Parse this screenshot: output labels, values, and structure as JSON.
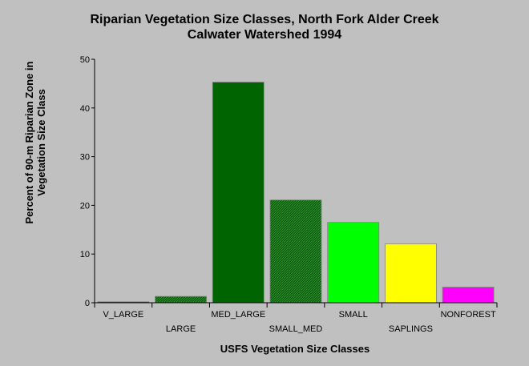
{
  "chart_data": {
    "type": "bar",
    "title": "Riparian Vegetation Size Classes, North Fork Alder Creek",
    "subtitle": "Calwater Watershed 1994",
    "xlabel": "USFS Vegetation Size Classes",
    "ylabel": "Percent of 90-m Riparian Zone in Vegetation Size Class",
    "ylim": [
      0,
      50
    ],
    "yticks": [
      0,
      10,
      20,
      30,
      40,
      50
    ],
    "categories": [
      "V_LARGE",
      "LARGE",
      "MED_LARGE",
      "SMALL_MED",
      "SMALL",
      "SAPLINGS",
      "NONFOREST"
    ],
    "values": [
      0.2,
      1.3,
      45.3,
      21.1,
      16.5,
      12.1,
      3.2
    ],
    "colors": [
      "#800080",
      "#006400",
      "#006400",
      "#006400",
      "#00ff00",
      "#ffff00",
      "#ff00ff"
    ],
    "patterns": [
      "solid",
      "hatched",
      "solid",
      "hatched",
      "solid",
      "solid",
      "solid"
    ],
    "grid": false
  }
}
